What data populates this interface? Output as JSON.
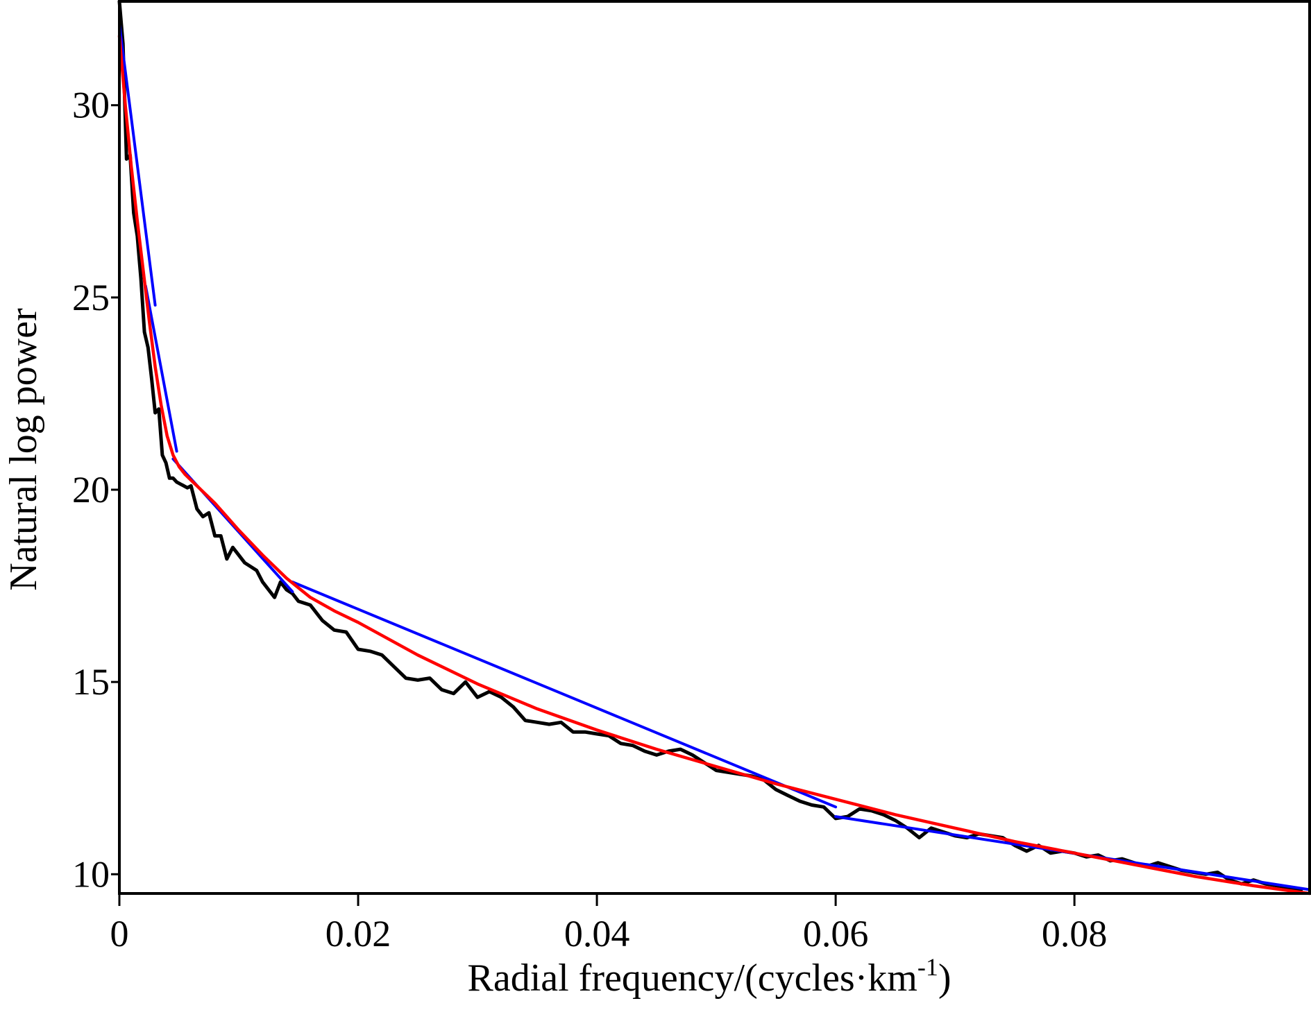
{
  "chart_data": {
    "type": "line",
    "title": "",
    "xlabel": {
      "main": "Radial frequency/(cycles·km",
      "superscript": "-1",
      "suffix": ")"
    },
    "ylabel": "Natural log power",
    "xlim": [
      0,
      0.0997
    ],
    "ylim": [
      9.5,
      32.7
    ],
    "grid": false,
    "x_ticks": [
      {
        "value": 0,
        "label": "0"
      },
      {
        "value": 0.02,
        "label": "0.02"
      },
      {
        "value": 0.04,
        "label": "0.04"
      },
      {
        "value": 0.06,
        "label": "0.06"
      },
      {
        "value": 0.08,
        "label": "0.08"
      }
    ],
    "y_ticks": [
      {
        "value": 10,
        "label": "10"
      },
      {
        "value": 15,
        "label": "15"
      },
      {
        "value": 20,
        "label": "20"
      },
      {
        "value": 25,
        "label": "25"
      },
      {
        "value": 30,
        "label": "30"
      }
    ],
    "series": [
      {
        "color": "#000000",
        "kind": "observed power spectrum",
        "x": [
          0,
          0.0003,
          0.0006,
          0.0009,
          0.0012,
          0.0015,
          0.0018,
          0.0021,
          0.0024,
          0.0027,
          0.003,
          0.0033,
          0.0036,
          0.0039,
          0.0042,
          0.0045,
          0.0048,
          0.0051,
          0.0054,
          0.0057,
          0.006,
          0.0065,
          0.007,
          0.0075,
          0.008,
          0.0085,
          0.009,
          0.0095,
          0.01,
          0.0105,
          0.011,
          0.0115,
          0.012,
          0.0125,
          0.013,
          0.0135,
          0.014,
          0.0145,
          0.015,
          0.016,
          0.017,
          0.018,
          0.019,
          0.02,
          0.021,
          0.022,
          0.023,
          0.024,
          0.025,
          0.026,
          0.027,
          0.028,
          0.029,
          0.03,
          0.031,
          0.032,
          0.033,
          0.034,
          0.035,
          0.036,
          0.037,
          0.038,
          0.039,
          0.04,
          0.041,
          0.042,
          0.043,
          0.044,
          0.045,
          0.046,
          0.047,
          0.048,
          0.049,
          0.05,
          0.051,
          0.052,
          0.053,
          0.054,
          0.055,
          0.056,
          0.057,
          0.058,
          0.059,
          0.06,
          0.061,
          0.062,
          0.063,
          0.064,
          0.065,
          0.066,
          0.067,
          0.068,
          0.069,
          0.07,
          0.071,
          0.072,
          0.073,
          0.074,
          0.075,
          0.076,
          0.077,
          0.078,
          0.079,
          0.08,
          0.081,
          0.082,
          0.083,
          0.084,
          0.085,
          0.086,
          0.087,
          0.088,
          0.089,
          0.09,
          0.091,
          0.092,
          0.093,
          0.094,
          0.095,
          0.096,
          0.097,
          0.098,
          0.099
        ],
        "y": [
          32.7,
          31.6,
          28.6,
          28.7,
          27.2,
          26.6,
          25.5,
          24.1,
          23.7,
          22.9,
          22.0,
          22.1,
          20.9,
          20.7,
          20.3,
          20.3,
          20.2,
          20.15,
          20.1,
          20.05,
          20.1,
          19.5,
          19.3,
          19.4,
          18.8,
          18.8,
          18.2,
          18.5,
          18.3,
          18.1,
          18.0,
          17.9,
          17.6,
          17.4,
          17.2,
          17.6,
          17.4,
          17.3,
          17.1,
          17.0,
          16.6,
          16.35,
          16.3,
          15.85,
          15.8,
          15.7,
          15.4,
          15.1,
          15.05,
          15.1,
          14.8,
          14.7,
          15.0,
          14.6,
          14.75,
          14.6,
          14.35,
          14.0,
          13.95,
          13.9,
          13.95,
          13.7,
          13.7,
          13.65,
          13.6,
          13.4,
          13.35,
          13.2,
          13.1,
          13.2,
          13.25,
          13.1,
          12.9,
          12.7,
          12.65,
          12.6,
          12.55,
          12.45,
          12.2,
          12.05,
          11.9,
          11.8,
          11.75,
          11.45,
          11.5,
          11.7,
          11.65,
          11.55,
          11.4,
          11.2,
          10.95,
          11.2,
          11.1,
          11.0,
          10.95,
          11.05,
          11.0,
          10.95,
          10.75,
          10.6,
          10.75,
          10.55,
          10.6,
          10.55,
          10.45,
          10.5,
          10.35,
          10.4,
          10.3,
          10.2,
          10.3,
          10.2,
          10.1,
          10.05,
          10.0,
          10.05,
          9.85,
          9.75,
          9.85,
          9.75,
          9.7,
          9.65,
          9.6
        ]
      },
      {
        "color": "#0000ff",
        "kind": "linear segment fits",
        "segments": [
          {
            "x": [
              0,
              0.003
            ],
            "y": [
              32.1,
              24.8
            ]
          },
          {
            "x": [
              0.0022,
              0.0048
            ],
            "y": [
              25.3,
              21.0
            ]
          },
          {
            "x": [
              0.0045,
              0.0145
            ],
            "y": [
              20.8,
              17.35
            ]
          },
          {
            "x": [
              0.0145,
              0.06
            ],
            "y": [
              17.6,
              11.75
            ]
          },
          {
            "x": [
              0.06,
              0.0997
            ],
            "y": [
              11.5,
              9.6
            ]
          }
        ]
      },
      {
        "color": "#ff0000",
        "kind": "fitted curve",
        "x": [
          0,
          0.0005,
          0.001,
          0.0015,
          0.002,
          0.0025,
          0.003,
          0.0035,
          0.004,
          0.0045,
          0.005,
          0.0055,
          0.006,
          0.007,
          0.008,
          0.009,
          0.01,
          0.012,
          0.014,
          0.016,
          0.018,
          0.02,
          0.025,
          0.03,
          0.035,
          0.04,
          0.045,
          0.05,
          0.055,
          0.06,
          0.065,
          0.07,
          0.075,
          0.08,
          0.085,
          0.09,
          0.095,
          0.0997
        ],
        "y": [
          31.8,
          30.0,
          28.4,
          27.0,
          25.7,
          24.4,
          23.2,
          22.2,
          21.4,
          20.9,
          20.6,
          20.4,
          20.25,
          19.95,
          19.65,
          19.3,
          18.95,
          18.3,
          17.7,
          17.2,
          16.85,
          16.55,
          15.7,
          14.95,
          14.3,
          13.75,
          13.25,
          12.8,
          12.35,
          11.95,
          11.55,
          11.2,
          10.85,
          10.55,
          10.25,
          9.95,
          9.7,
          9.5
        ]
      }
    ]
  }
}
